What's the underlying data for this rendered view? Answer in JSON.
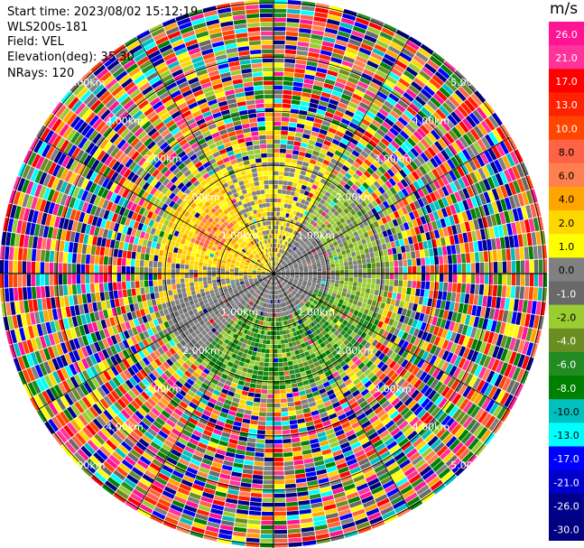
{
  "header": {
    "start_time": "Start time: 2023/08/02 15:12:19",
    "instrument": "WLS200s-181",
    "field": "Field: VEL",
    "elevation": "Elevation(deg): 35.30",
    "nrays": "NRays: 120"
  },
  "colorbar": {
    "unit": "m/s",
    "ticks": [
      "26.0",
      "21.0",
      "17.0",
      "13.0",
      "10.0",
      "8.0",
      "6.0",
      "4.0",
      "2.0",
      "1.0",
      "0.0",
      "-1.0",
      "-2.0",
      "-4.0",
      "-6.0",
      "-8.0",
      "-10.0",
      "-13.0",
      "-17.0",
      "-21.0",
      "-26.0",
      "-30.0"
    ],
    "colors": [
      "#ff1493",
      "#ff3399",
      "#ff0000",
      "#ff2200",
      "#ff4500",
      "#ff6347",
      "#ff7f50",
      "#ffa500",
      "#ffd700",
      "#ffff00",
      "#808080",
      "#696969",
      "#9acd32",
      "#6b8e23",
      "#228b22",
      "#008000",
      "#00bfbf",
      "#00ffff",
      "#0000ff",
      "#0000cd",
      "#00008b",
      "#000080"
    ]
  },
  "ppi": {
    "n_rays": 120,
    "range_labels": [
      "1.00km",
      "2.00km",
      "3.00km",
      "4.00km"
    ],
    "diag_label": "5.00km",
    "ring_count": 5
  }
}
